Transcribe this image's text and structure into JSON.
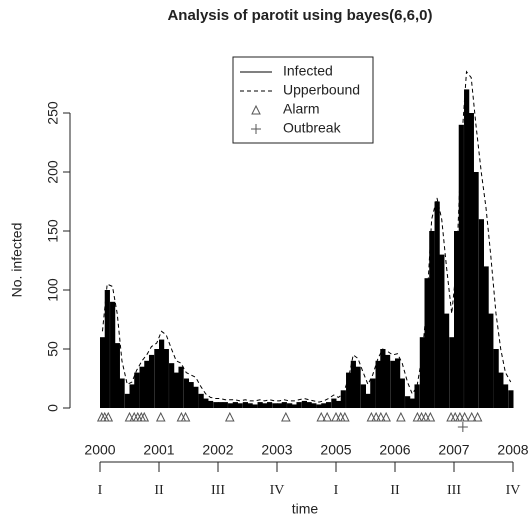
{
  "chart_data": {
    "type": "surveillance",
    "title": "Analysis of parotit using bayes(6,6,0)",
    "y_label": "No. infected",
    "x_label": "time",
    "ylim": [
      0,
      250
    ],
    "yticks": [
      0,
      50,
      100,
      150,
      200,
      250
    ],
    "xlim": [
      2000,
      2007
    ],
    "xticks": [
      2000,
      2001,
      2002,
      2003,
      {
        "value": 2004,
        "label": "2005"
      },
      {
        "value": 2005,
        "label": "2006"
      },
      {
        "value": 2006,
        "label": "2007"
      },
      {
        "value": 2007,
        "label": "2008"
      }
    ],
    "quarter_ticks": [
      {
        "value": 2000,
        "label": "I"
      },
      {
        "value": 2001,
        "label": "II"
      },
      {
        "value": 2002,
        "label": "III"
      },
      {
        "value": 2003,
        "label": "IV"
      },
      {
        "value": 2004,
        "label": "I"
      },
      {
        "value": 2005,
        "label": "II"
      },
      {
        "value": 2006,
        "label": "III"
      },
      {
        "value": 2007,
        "label": "IV"
      }
    ],
    "legend": "top",
    "x": [
      2000.0,
      2000.08,
      2000.17,
      2000.25,
      2000.33,
      2000.42,
      2000.5,
      2000.58,
      2000.67,
      2000.75,
      2000.83,
      2000.92,
      2001.0,
      2001.08,
      2001.17,
      2001.25,
      2001.33,
      2001.42,
      2001.5,
      2001.58,
      2001.67,
      2001.75,
      2001.83,
      2001.92,
      2002.0,
      2002.08,
      2002.17,
      2002.25,
      2002.33,
      2002.42,
      2002.5,
      2002.58,
      2002.67,
      2002.75,
      2002.83,
      2002.92,
      2003.0,
      2003.08,
      2003.17,
      2003.25,
      2003.33,
      2003.42,
      2003.5,
      2003.58,
      2003.67,
      2003.75,
      2003.83,
      2003.92,
      2004.0,
      2004.08,
      2004.17,
      2004.25,
      2004.33,
      2004.42,
      2004.5,
      2004.58,
      2004.67,
      2004.75,
      2004.83,
      2004.92,
      2005.0,
      2005.08,
      2005.17,
      2005.25,
      2005.33,
      2005.42,
      2005.5,
      2005.58,
      2005.67,
      2005.75,
      2005.83,
      2005.92,
      2006.0,
      2006.08,
      2006.17,
      2006.25,
      2006.33,
      2006.42,
      2006.5,
      2006.58,
      2006.67,
      2006.75,
      2006.83,
      2006.92
    ],
    "series": [
      {
        "name": "Infected",
        "color": "#000000",
        "values": [
          60,
          100,
          90,
          55,
          25,
          12,
          20,
          30,
          35,
          40,
          45,
          50,
          58,
          50,
          38,
          30,
          35,
          25,
          22,
          18,
          12,
          8,
          6,
          5,
          5,
          5,
          4,
          5,
          4,
          5,
          4,
          3,
          5,
          4,
          5,
          4,
          4,
          5,
          4,
          3,
          5,
          6,
          5,
          4,
          3,
          4,
          5,
          8,
          6,
          15,
          30,
          40,
          35,
          20,
          12,
          25,
          40,
          50,
          45,
          40,
          42,
          25,
          10,
          8,
          20,
          60,
          110,
          150,
          175,
          130,
          80,
          60,
          150,
          240,
          270,
          250,
          200,
          160,
          120,
          80,
          50,
          30,
          20,
          15
        ]
      },
      {
        "name": "Upperbound",
        "color": "#000000",
        "values": [
          65,
          105,
          103,
          80,
          40,
          20,
          22,
          32,
          40,
          45,
          52,
          55,
          65,
          62,
          50,
          40,
          38,
          30,
          28,
          26,
          18,
          12,
          9,
          8,
          8,
          7,
          7,
          7,
          6,
          7,
          6,
          6,
          7,
          6,
          7,
          6,
          6,
          7,
          6,
          6,
          7,
          8,
          7,
          6,
          5,
          6,
          8,
          11,
          9,
          12,
          25,
          45,
          42,
          30,
          20,
          28,
          42,
          50,
          48,
          45,
          46,
          38,
          22,
          12,
          18,
          45,
          90,
          160,
          178,
          160,
          120,
          80,
          120,
          220,
          285,
          280,
          240,
          200,
          170,
          130,
          80,
          50,
          30,
          22
        ]
      },
      {
        "name": "Alarm",
        "color": "#555555",
        "x": [
          2000.03,
          2000.08,
          2000.14,
          2000.5,
          2000.58,
          2000.64,
          2000.7,
          2000.75,
          2001.03,
          2001.38,
          2001.45,
          2002.2,
          2003.15,
          2003.75,
          2003.85,
          2004.0,
          2004.08,
          2004.15,
          2004.6,
          2004.68,
          2004.76,
          2004.85,
          2005.1,
          2005.38,
          2005.45,
          2005.52,
          2005.6,
          2005.95,
          2006.02,
          2006.1,
          2006.18,
          2006.3,
          2006.4
        ]
      },
      {
        "name": "Outbreak",
        "color": "#555555",
        "x": [
          2006.15
        ]
      }
    ]
  }
}
